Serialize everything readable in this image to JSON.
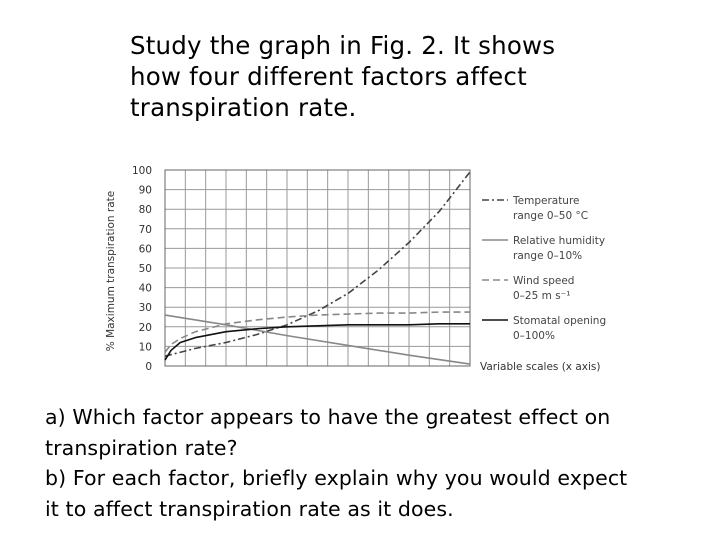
{
  "intro": {
    "lines": [
      "Study the graph in Fig. 2.  It shows",
      "how four different factors affect",
      "transpiration rate."
    ]
  },
  "questions": {
    "lines": [
      "a) Which factor appears to have the greatest effect on",
      "transpiration rate?",
      "b) For each factor, briefly explain why you would expect",
      "it to affect transpiration rate as it does."
    ]
  },
  "chart_data": {
    "type": "line",
    "title": "",
    "xlabel": "Variable scales (x axis)",
    "ylabel": "% Maximum transpiration rate",
    "ylim": [
      0,
      100
    ],
    "xlim": [
      0,
      1
    ],
    "yticks": [
      "0",
      "10",
      "20",
      "30",
      "40",
      "50",
      "60",
      "70",
      "80",
      "90",
      "100"
    ],
    "grid": true,
    "legend_position": "right",
    "series": [
      {
        "name": "Temperature range 0–50 °C",
        "legend_lines": [
          "Temperature",
          "range 0–50 °C"
        ],
        "style": "dash-dot",
        "color": "#444444",
        "x": [
          0.0,
          0.1,
          0.2,
          0.3,
          0.4,
          0.5,
          0.6,
          0.7,
          0.8,
          0.9,
          1.0
        ],
        "y": [
          5,
          9,
          12,
          16,
          21,
          28,
          37,
          49,
          63,
          79,
          99
        ]
      },
      {
        "name": "Relative humidity range 0–10%",
        "legend_lines": [
          "Relative humidity",
          "range 0–10%"
        ],
        "style": "solid",
        "color": "#888888",
        "x": [
          0.0,
          0.2,
          0.4,
          0.6,
          0.8,
          1.0
        ],
        "y": [
          26,
          21,
          15.5,
          10.5,
          5.5,
          1
        ]
      },
      {
        "name": "Wind speed 0–25 m s⁻¹",
        "legend_lines": [
          "Wind speed",
          "0–25 m s⁻¹"
        ],
        "style": "dashed",
        "color": "#888888",
        "x": [
          0.0,
          0.02,
          0.05,
          0.1,
          0.2,
          0.3,
          0.4,
          0.5,
          0.6,
          0.7,
          0.8,
          0.9,
          1.0
        ],
        "y": [
          7,
          11,
          14,
          17.5,
          21.5,
          23.5,
          25,
          26,
          26.5,
          27,
          27,
          27.5,
          27.5
        ]
      },
      {
        "name": "Stomatal opening 0–100%",
        "legend_lines": [
          "Stomatal opening",
          "0–100%"
        ],
        "style": "solid",
        "color": "#111111",
        "x": [
          0.0,
          0.02,
          0.05,
          0.1,
          0.2,
          0.3,
          0.4,
          0.5,
          0.6,
          0.7,
          0.8,
          0.9,
          1.0
        ],
        "y": [
          3,
          8,
          12,
          14.5,
          17.5,
          19,
          20,
          20.5,
          21,
          21,
          21,
          21.5,
          21.5
        ]
      }
    ],
    "colors": {
      "grid": "#999999",
      "frame": "#666666"
    }
  }
}
